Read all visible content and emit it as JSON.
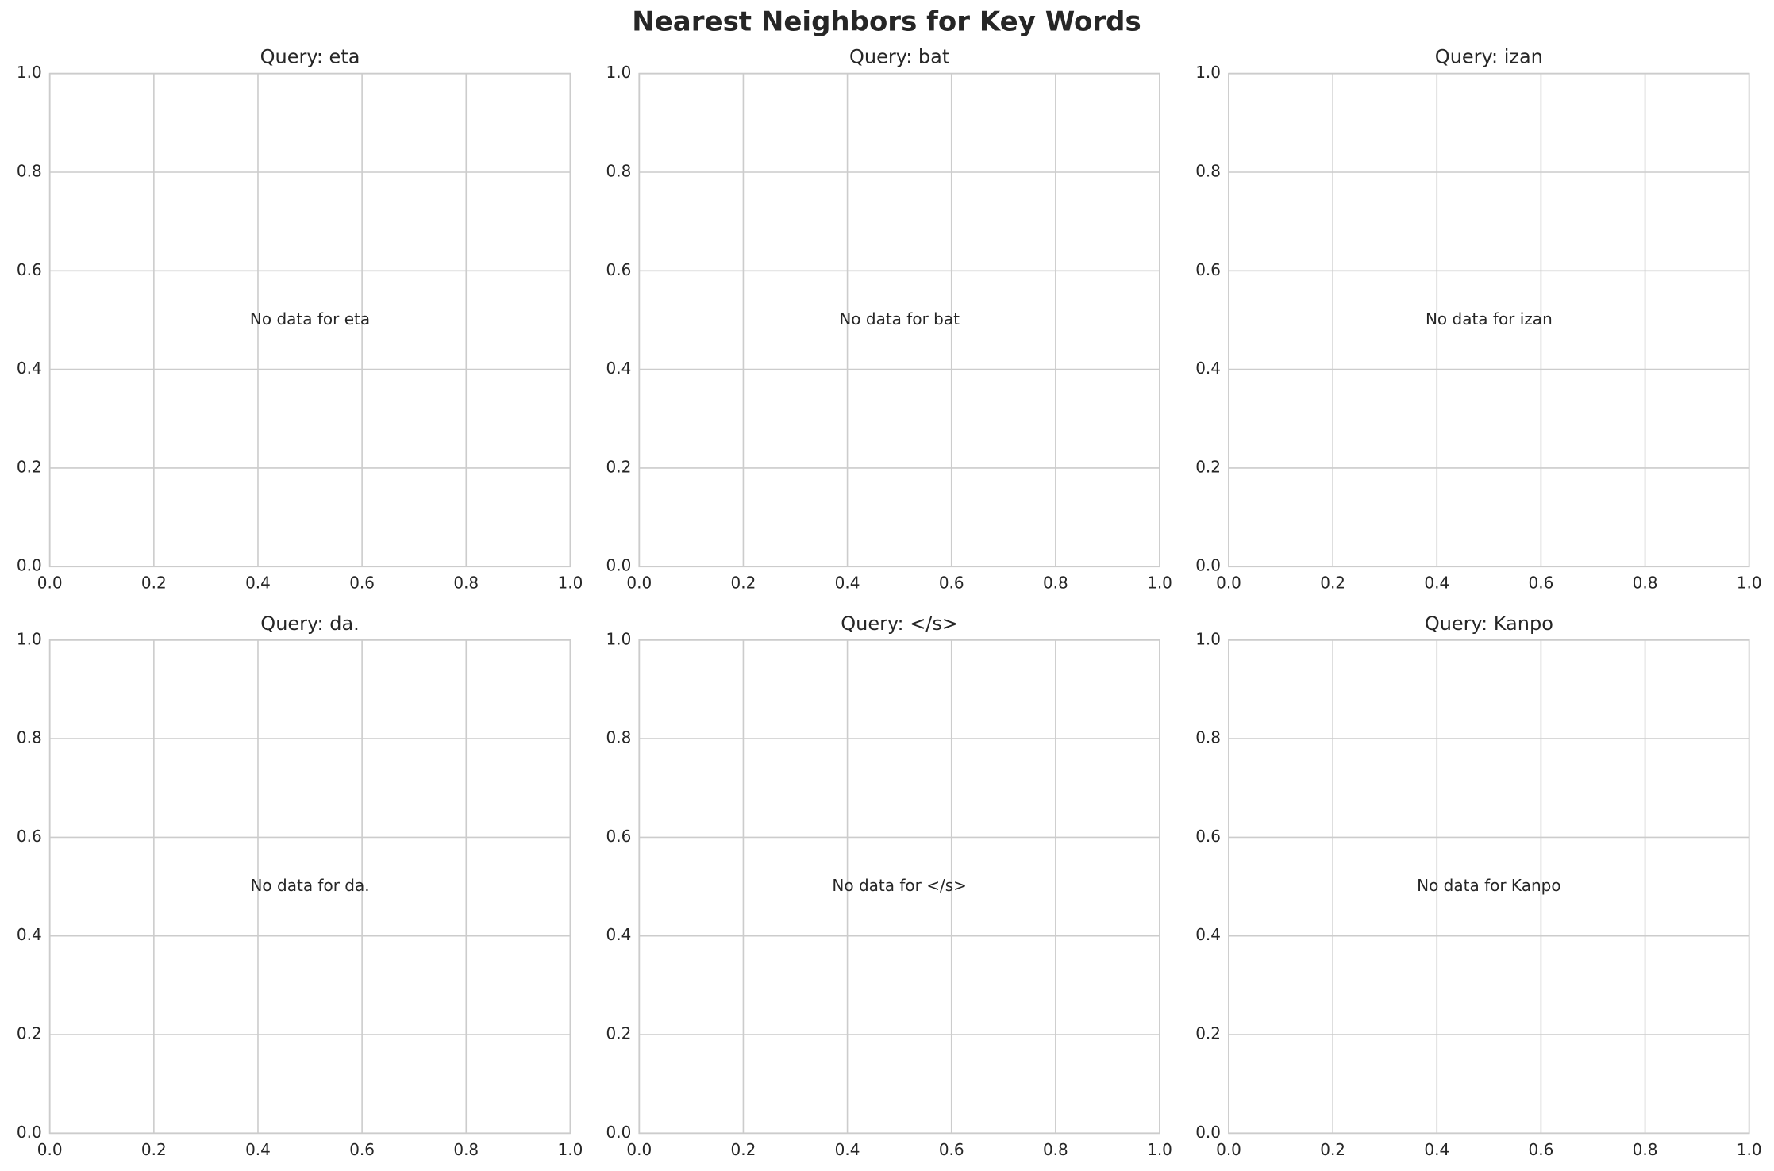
{
  "title": "Nearest Neighbors for Key Words",
  "chart_data": [
    {
      "type": "scatter",
      "title": "Query: eta",
      "annotation": "No data for eta",
      "xlim": [
        0,
        1
      ],
      "ylim": [
        0,
        1
      ],
      "xticks": [
        {
          "value": 0,
          "label": "0.0"
        },
        0.2,
        0.4,
        0.6,
        0.8,
        {
          "value": 1,
          "label": "1.0"
        }
      ],
      "yticks": [
        {
          "value": 0,
          "label": "0.0"
        },
        0.2,
        0.4,
        0.6,
        0.8,
        {
          "value": 1,
          "label": "1.0"
        }
      ],
      "grid": true
    },
    {
      "type": "scatter",
      "title": "Query: bat",
      "annotation": "No data for bat",
      "xlim": [
        0,
        1
      ],
      "ylim": [
        0,
        1
      ],
      "xticks": [
        {
          "value": 0,
          "label": "0.0"
        },
        0.2,
        0.4,
        0.6,
        0.8,
        {
          "value": 1,
          "label": "1.0"
        }
      ],
      "yticks": [
        {
          "value": 0,
          "label": "0.0"
        },
        0.2,
        0.4,
        0.6,
        0.8,
        {
          "value": 1,
          "label": "1.0"
        }
      ],
      "grid": true
    },
    {
      "type": "scatter",
      "title": "Query: izan",
      "annotation": "No data for izan",
      "xlim": [
        0,
        1
      ],
      "ylim": [
        0,
        1
      ],
      "xticks": [
        {
          "value": 0,
          "label": "0.0"
        },
        0.2,
        0.4,
        0.6,
        0.8,
        {
          "value": 1,
          "label": "1.0"
        }
      ],
      "yticks": [
        {
          "value": 0,
          "label": "0.0"
        },
        0.2,
        0.4,
        0.6,
        0.8,
        {
          "value": 1,
          "label": "1.0"
        }
      ],
      "grid": true
    },
    {
      "type": "scatter",
      "title": "Query: da.",
      "annotation": "No data for da.",
      "xlim": [
        0,
        1
      ],
      "ylim": [
        0,
        1
      ],
      "xticks": [
        {
          "value": 0,
          "label": "0.0"
        },
        0.2,
        0.4,
        0.6,
        0.8,
        {
          "value": 1,
          "label": "1.0"
        }
      ],
      "yticks": [
        {
          "value": 0,
          "label": "0.0"
        },
        0.2,
        0.4,
        0.6,
        0.8,
        {
          "value": 1,
          "label": "1.0"
        }
      ],
      "grid": true
    },
    {
      "type": "scatter",
      "title": "Query: </s>",
      "annotation": "No data for </s>",
      "xlim": [
        0,
        1
      ],
      "ylim": [
        0,
        1
      ],
      "xticks": [
        {
          "value": 0,
          "label": "0.0"
        },
        0.2,
        0.4,
        0.6,
        0.8,
        {
          "value": 1,
          "label": "1.0"
        }
      ],
      "yticks": [
        {
          "value": 0,
          "label": "0.0"
        },
        0.2,
        0.4,
        0.6,
        0.8,
        {
          "value": 1,
          "label": "1.0"
        }
      ],
      "grid": true
    },
    {
      "type": "scatter",
      "title": "Query: Kanpo",
      "annotation": "No data for Kanpo",
      "xlim": [
        0,
        1
      ],
      "ylim": [
        0,
        1
      ],
      "xticks": [
        {
          "value": 0,
          "label": "0.0"
        },
        0.2,
        0.4,
        0.6,
        0.8,
        {
          "value": 1,
          "label": "1.0"
        }
      ],
      "yticks": [
        {
          "value": 0,
          "label": "0.0"
        },
        0.2,
        0.4,
        0.6,
        0.8,
        {
          "value": 1,
          "label": "1.0"
        }
      ],
      "grid": true
    }
  ]
}
